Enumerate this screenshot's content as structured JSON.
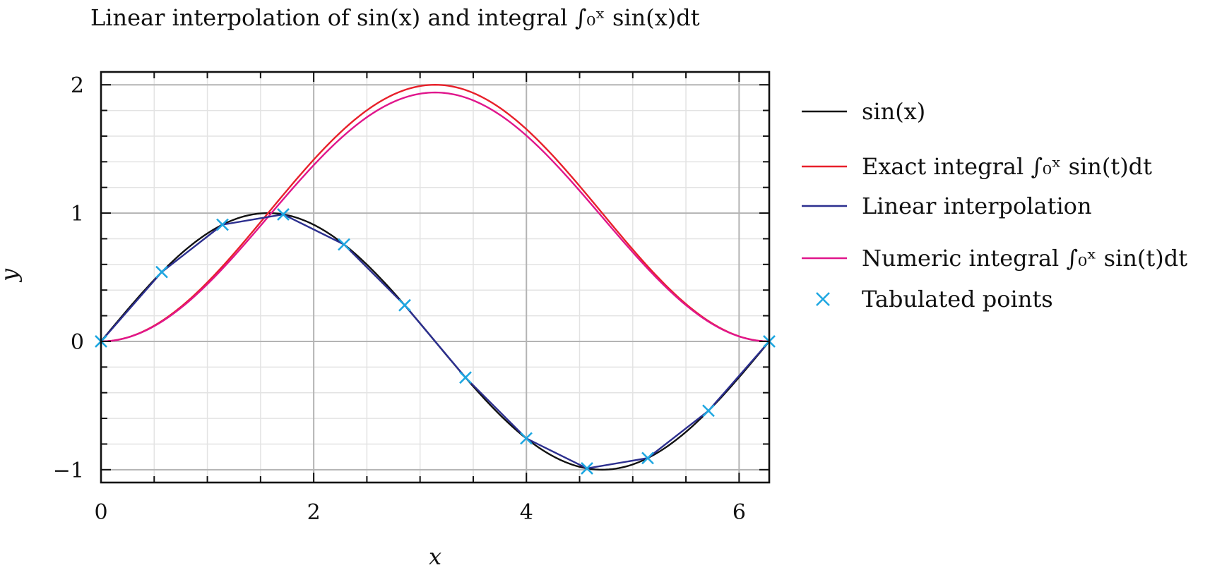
{
  "chart_data": {
    "type": "line",
    "title": "Linear interpolation of sin(x) and integral ∫₀ˣ sin(x)dt",
    "xlabel": "x",
    "ylabel": "y",
    "xlim": [
      0,
      6.283185307179586
    ],
    "ylim": [
      -1.1,
      2.1
    ],
    "x_ticks": [
      "0",
      "2",
      "4",
      "6"
    ],
    "y_ticks": [
      "−1",
      "0",
      "1",
      "2"
    ],
    "grid": true,
    "legend_position": "right",
    "series": [
      {
        "name": "sin(x)",
        "color": "#111111",
        "x": [
          0,
          0.2618,
          0.5236,
          0.7854,
          1.0472,
          1.309,
          1.5708,
          1.8326,
          2.0944,
          2.3562,
          2.618,
          2.8798,
          3.1416,
          3.4034,
          3.6652,
          3.927,
          4.1888,
          4.4506,
          4.7124,
          4.9742,
          5.236,
          5.4978,
          5.7596,
          6.0214,
          6.2832
        ],
        "y": [
          0,
          0.2588,
          0.5,
          0.7071,
          0.866,
          0.9659,
          1,
          0.9659,
          0.866,
          0.7071,
          0.5,
          0.2588,
          0,
          -0.2588,
          -0.5,
          -0.7071,
          -0.866,
          -0.9659,
          -1,
          -0.9659,
          -0.866,
          -0.7071,
          -0.5,
          -0.2588,
          0
        ]
      },
      {
        "name": "Exact integral ∫₀ˣ sin(t)dt",
        "color": "#e8202a",
        "x": [
          0,
          0.2618,
          0.5236,
          0.7854,
          1.0472,
          1.309,
          1.5708,
          1.8326,
          2.0944,
          2.3562,
          2.618,
          2.8798,
          3.1416,
          3.4034,
          3.6652,
          3.927,
          4.1888,
          4.4506,
          4.7124,
          4.9742,
          5.236,
          5.4978,
          5.7596,
          6.0214,
          6.2832
        ],
        "y": [
          0,
          0.0341,
          0.134,
          0.2929,
          0.5,
          0.7412,
          1,
          1.2588,
          1.5,
          1.7071,
          1.866,
          1.9659,
          2,
          1.9659,
          1.866,
          1.7071,
          1.5,
          1.2588,
          1,
          0.7412,
          0.5,
          0.2929,
          0.134,
          0.0341,
          0
        ]
      },
      {
        "name": "Linear interpolation",
        "color": "#2c2f8f",
        "x": [
          0,
          0.5712,
          1.1424,
          1.7136,
          2.2848,
          2.856,
          3.4272,
          3.9984,
          4.5696,
          5.1408,
          5.712,
          6.2832
        ],
        "y": [
          0,
          0.5406,
          0.9096,
          0.9898,
          0.7557,
          0.2817,
          -0.2817,
          -0.7557,
          -0.9898,
          -0.9096,
          -0.5406,
          0
        ]
      },
      {
        "name": "Numeric integral ∫₀ˣ sin(t)dt",
        "color": "#e0168c",
        "x": [
          0,
          0.5712,
          1.1424,
          1.7136,
          2.2848,
          2.856,
          3.4272,
          3.9984,
          4.5696,
          5.1408,
          5.712,
          6.2832
        ],
        "y": [
          0,
          0.1544,
          0.5686,
          1.1111,
          1.6104,
          1.9319,
          2.0,
          1.7881,
          1.3283,
          0.7683,
          0.2852,
          0
        ]
      },
      {
        "name": "Tabulated points",
        "color": "#1ea7e1",
        "marker": "x",
        "x": [
          0,
          0.5712,
          1.1424,
          1.7136,
          2.2848,
          2.856,
          3.4272,
          3.9984,
          4.5696,
          5.1408,
          5.712,
          6.2832
        ],
        "y": [
          0,
          0.5406,
          0.9096,
          0.9898,
          0.7557,
          0.2817,
          -0.2817,
          -0.7557,
          -0.9898,
          -0.9096,
          -0.5406,
          0
        ]
      }
    ]
  }
}
